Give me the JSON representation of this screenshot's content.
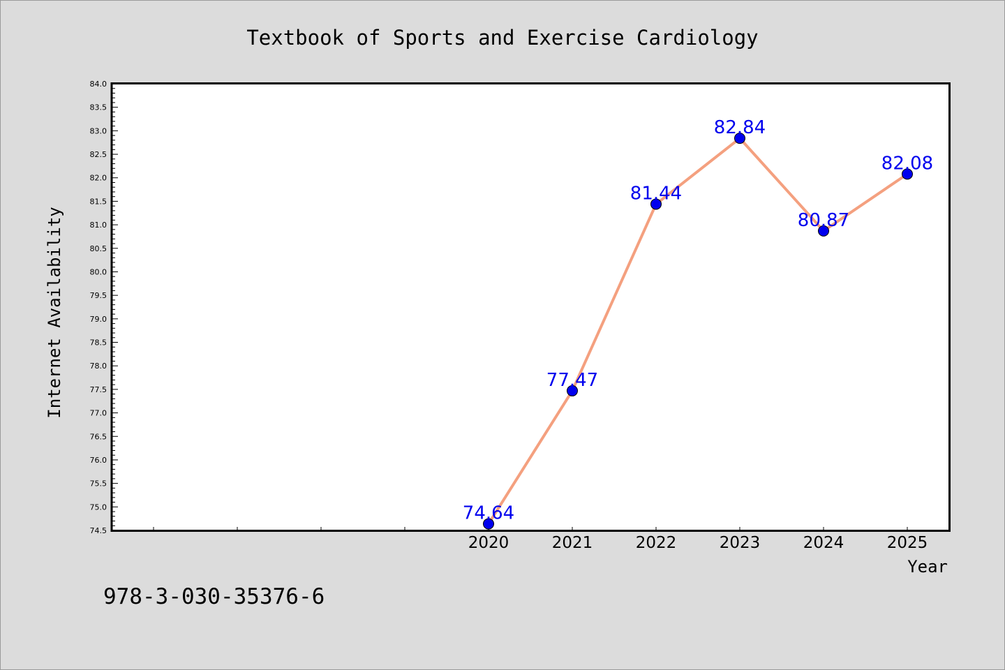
{
  "chart_data": {
    "type": "line",
    "title": "Textbook of Sports and Exercise Cardiology",
    "xlabel": "Year",
    "ylabel": "Internet Availability",
    "x": [
      2020,
      2021,
      2022,
      2023,
      2024,
      2025
    ],
    "series": [
      {
        "values": [
          74.64,
          77.47,
          81.44,
          82.84,
          80.87,
          82.08
        ]
      }
    ],
    "data_labels": [
      "74.64",
      "77.47",
      "81.44",
      "82.84",
      "80.87",
      "82.08"
    ],
    "xlim": [
      2015.5,
      2025.5
    ],
    "ylim": [
      74.5,
      84.0
    ],
    "y_ticks": [
      "74.5",
      "75.0",
      "75.5",
      "76.0",
      "76.5",
      "77.0",
      "77.5",
      "78.0",
      "78.5",
      "79.0",
      "79.5",
      "80.0",
      "80.5",
      "81.0",
      "81.5",
      "82.0",
      "82.5",
      "83.0",
      "83.5",
      "84.0"
    ],
    "x_ticks": [
      "2020",
      "2021",
      "2022",
      "2023",
      "2024",
      "2025"
    ],
    "grid": false,
    "line_color": "#f4a07f",
    "marker_color": "#0000ee",
    "label_color": "#0000ee"
  },
  "footnote": "978-3-030-35376-6"
}
